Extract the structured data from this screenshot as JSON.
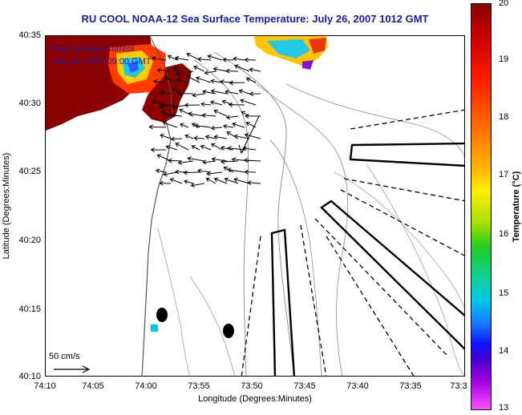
{
  "header": {
    "title": "RU COOL  NOAA-12  Sea Surface Temperature:  July 26, 2007 1012 GMT"
  },
  "overlay": {
    "current_title": "Raw Surface Current",
    "current_time": "July 26, 2007 09:00 GMT",
    "scale_label": "50 cm/s"
  },
  "axes": {
    "xlabel": "Longitude (Degrees:Minutes)",
    "ylabel": "Latitude (Degrees:Minutes)",
    "x_ticks": [
      "74:10",
      "74:05",
      "74:00",
      "73:55",
      "73:50",
      "73:45",
      "73:40",
      "73:35",
      "73:3"
    ],
    "y_ticks": [
      "40:35",
      "40:30",
      "40:25",
      "40:20",
      "40:15",
      "40:10"
    ]
  },
  "colorbar": {
    "label": "Temperature (°C)",
    "ticks": [
      "20",
      "19",
      "18",
      "17",
      "16",
      "15",
      "14",
      "13"
    ],
    "range": [
      13,
      20
    ]
  },
  "colors": {
    "title": "#1a1aa6",
    "land_hot": "#8b0000",
    "buoy": "#00c8e8"
  },
  "icons": {
    "current_arrow": "arrow-icon",
    "scale_arrow": "arrow-right-icon"
  }
}
